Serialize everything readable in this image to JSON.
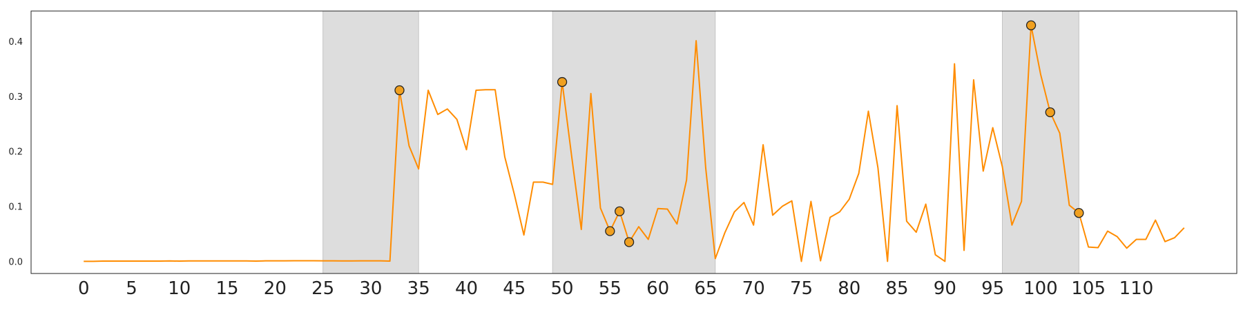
{
  "chart_data": {
    "type": "line",
    "title": "",
    "xlabel": "",
    "ylabel": "",
    "xlim": [
      -5.5,
      120.5
    ],
    "ylim": [
      -0.022,
      0.455
    ],
    "x_ticks": [
      0,
      5,
      10,
      15,
      20,
      25,
      30,
      35,
      40,
      45,
      50,
      55,
      60,
      65,
      70,
      75,
      80,
      85,
      90,
      95,
      100,
      105,
      110
    ],
    "x_tick_labels": [
      "0",
      "5",
      "10",
      "15",
      "20",
      "25",
      "30",
      "35",
      "40",
      "45",
      "50",
      "55",
      "60",
      "65",
      "70",
      "75",
      "80",
      "85",
      "90",
      "95",
      "100",
      "105",
      "110"
    ],
    "y_ticks": [
      0.0,
      0.1,
      0.2,
      0.3,
      0.4
    ],
    "y_tick_labels": [
      "0.0",
      "0.1",
      "0.2",
      "0.3",
      "0.4"
    ],
    "grid": false,
    "legend": "none",
    "line_color": "#ff8c00",
    "marker_color": "#f0a020",
    "band_color": "#dddddd",
    "shaded_regions": [
      [
        25,
        35
      ],
      [
        49,
        66
      ],
      [
        96,
        104
      ]
    ],
    "series": [
      {
        "x": [
          0,
          1,
          2,
          3,
          4,
          5,
          6,
          7,
          8,
          9,
          10,
          11,
          12,
          13,
          14,
          15,
          16,
          17,
          18,
          19,
          20,
          21,
          22,
          23,
          24,
          25,
          26,
          27,
          28,
          29,
          30,
          31,
          32,
          33,
          34,
          35,
          36,
          37,
          38,
          39,
          40,
          41,
          42,
          43,
          44,
          45,
          46,
          47,
          48,
          49,
          50,
          51,
          52,
          53,
          54,
          55,
          56,
          57,
          58,
          59,
          60,
          61,
          62,
          63,
          64,
          65,
          66,
          67,
          68,
          69,
          70,
          71,
          72,
          73,
          74,
          75,
          76,
          77,
          78,
          79,
          80,
          81,
          82,
          83,
          84,
          85,
          86,
          87,
          88,
          89,
          90,
          91,
          92,
          93,
          94,
          95,
          96,
          97,
          98,
          99,
          100,
          101,
          102,
          103,
          104,
          105,
          106,
          107,
          108,
          109,
          110,
          111,
          112,
          113,
          114,
          115
        ],
        "y": [
          0.0,
          0.0,
          0.0005,
          0.0005,
          0.0005,
          0.0005,
          0.0005,
          0.0005,
          0.0005,
          0.0008,
          0.0005,
          0.0008,
          0.0008,
          0.0008,
          0.0008,
          0.0008,
          0.0008,
          0.0008,
          0.0005,
          0.001,
          0.001,
          0.001,
          0.0012,
          0.0012,
          0.0012,
          0.001,
          0.001,
          0.0008,
          0.0008,
          0.001,
          0.001,
          0.001,
          0.0005,
          0.311,
          0.21,
          0.168,
          0.311,
          0.267,
          0.277,
          0.258,
          0.203,
          0.311,
          0.312,
          0.312,
          0.19,
          0.122,
          0.048,
          0.144,
          0.144,
          0.14,
          0.326,
          0.19,
          0.058,
          0.305,
          0.097,
          0.055,
          0.091,
          0.035,
          0.063,
          0.04,
          0.096,
          0.095,
          0.068,
          0.148,
          0.401,
          0.17,
          0.005,
          0.052,
          0.09,
          0.107,
          0.066,
          0.212,
          0.084,
          0.1,
          0.11,
          0.0,
          0.109,
          0.001,
          0.08,
          0.09,
          0.113,
          0.16,
          0.273,
          0.17,
          0.0,
          0.283,
          0.073,
          0.053,
          0.104,
          0.012,
          0.0,
          0.359,
          0.02,
          0.33,
          0.164,
          0.243,
          0.172,
          0.066,
          0.109,
          0.429,
          0.34,
          0.271,
          0.233,
          0.102,
          0.088,
          0.026,
          0.025,
          0.055,
          0.045,
          0.024,
          0.04,
          0.04,
          0.075,
          0.036,
          0.043,
          0.061
        ]
      }
    ],
    "highlighted_points": [
      {
        "x": 33,
        "y": 0.311
      },
      {
        "x": 50,
        "y": 0.326
      },
      {
        "x": 55,
        "y": 0.055
      },
      {
        "x": 56,
        "y": 0.091
      },
      {
        "x": 57,
        "y": 0.035
      },
      {
        "x": 99,
        "y": 0.429
      },
      {
        "x": 101,
        "y": 0.271
      },
      {
        "x": 104,
        "y": 0.088
      }
    ]
  }
}
